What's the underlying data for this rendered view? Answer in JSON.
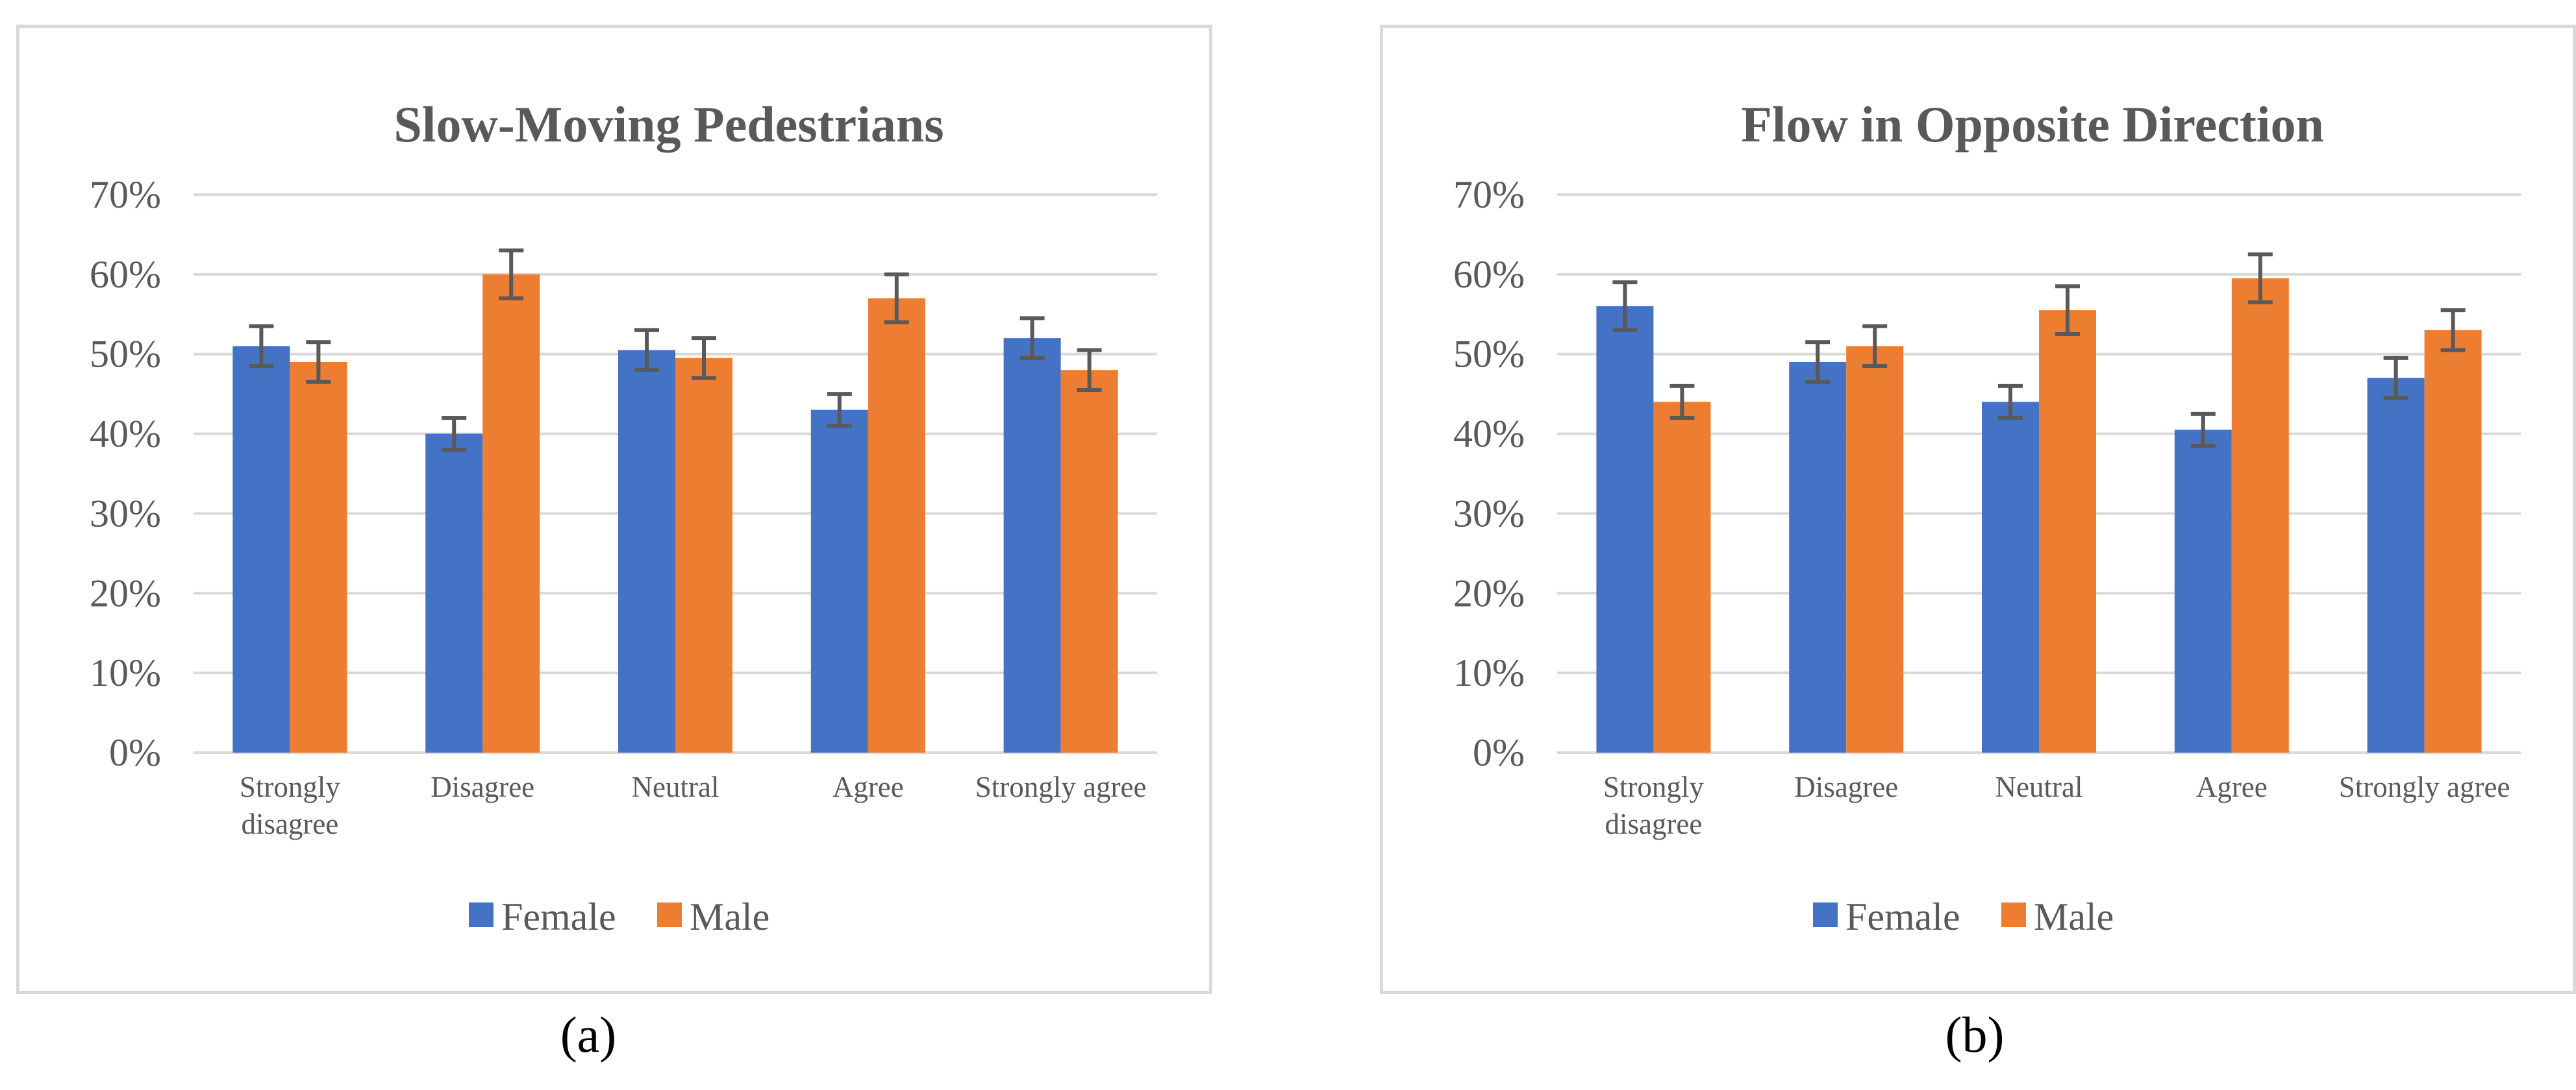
{
  "chart_data": [
    {
      "type": "bar",
      "title": "Slow-Moving Pedestrians",
      "categories": [
        [
          "Strongly",
          "disagree"
        ],
        [
          "Disagree"
        ],
        [
          "Neutral"
        ],
        [
          "Agree"
        ],
        [
          "Strongly agree"
        ]
      ],
      "series": [
        {
          "name": "Female",
          "color": "#4472C4",
          "values": [
            51,
            40,
            50.5,
            43,
            52
          ],
          "errors": [
            2.5,
            2,
            2.5,
            2,
            2.5
          ]
        },
        {
          "name": "Male",
          "color": "#ED7D31",
          "values": [
            49,
            60,
            49.5,
            57,
            48
          ],
          "errors": [
            2.5,
            3,
            2.5,
            3,
            2.5
          ]
        }
      ],
      "yticks": [
        "0%",
        "10%",
        "20%",
        "30%",
        "40%",
        "50%",
        "60%",
        "70%"
      ],
      "ylim": [
        0,
        70
      ],
      "xlabel": "",
      "ylabel": "",
      "legend": "bottom-center",
      "grid": true,
      "sublabel": "(a)"
    },
    {
      "type": "bar",
      "title": "Flow in Opposite Direction",
      "categories": [
        [
          "Strongly",
          "disagree"
        ],
        [
          "Disagree"
        ],
        [
          "Neutral"
        ],
        [
          "Agree"
        ],
        [
          "Strongly agree"
        ]
      ],
      "series": [
        {
          "name": "Female",
          "color": "#4472C4",
          "values": [
            56,
            49,
            44,
            40.5,
            47
          ],
          "errors": [
            3,
            2.5,
            2,
            2,
            2.5
          ]
        },
        {
          "name": "Male",
          "color": "#ED7D31",
          "values": [
            44,
            51,
            55.5,
            59.5,
            53
          ],
          "errors": [
            2,
            2.5,
            3,
            3,
            2.5
          ]
        }
      ],
      "yticks": [
        "0%",
        "10%",
        "20%",
        "30%",
        "40%",
        "50%",
        "60%",
        "70%"
      ],
      "ylim": [
        0,
        70
      ],
      "xlabel": "",
      "ylabel": "",
      "legend": "bottom-center",
      "grid": true,
      "sublabel": "(b)"
    }
  ]
}
